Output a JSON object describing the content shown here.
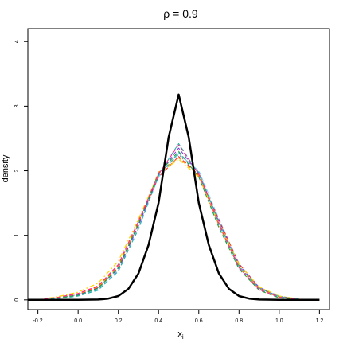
{
  "chart_data": {
    "type": "line",
    "title": "ρ = 0.9",
    "xlabel": "x",
    "xlabel_subscript": "i",
    "ylabel": "density",
    "xlim": [
      -0.25,
      1.25
    ],
    "ylim": [
      -0.15,
      4.2
    ],
    "xticks": [
      "-0.2",
      "0.0",
      "0.2",
      "0.4",
      "0.6",
      "0.8",
      "1.0",
      "1.2"
    ],
    "yticks": [
      "0",
      "1",
      "2",
      "3",
      "4"
    ],
    "grid": false,
    "legend": "none",
    "series": [
      {
        "color": "#000000",
        "dash": "solid",
        "width": 2.5,
        "x": [
          -0.25,
          -0.2,
          -0.1,
          0.0,
          0.1,
          0.15,
          0.2,
          0.25,
          0.3,
          0.35,
          0.4,
          0.45,
          0.5,
          0.55,
          0.6,
          0.65,
          0.7,
          0.75,
          0.8,
          0.85,
          0.9,
          1.0,
          1.1,
          1.2
        ],
        "y": [
          0.0,
          0.0,
          0.0,
          0.0,
          0.005,
          0.02,
          0.06,
          0.17,
          0.41,
          0.85,
          1.5,
          2.52,
          3.18,
          2.52,
          1.5,
          0.85,
          0.41,
          0.17,
          0.06,
          0.02,
          0.005,
          0.0,
          0.0,
          0.0
        ]
      },
      {
        "color": "#ff2a8c",
        "dash": "dashed",
        "width": 1,
        "x": [
          -0.2,
          -0.1,
          0.0,
          0.1,
          0.2,
          0.3,
          0.4,
          0.5,
          0.6,
          0.7,
          0.8,
          0.9,
          1.0,
          1.1,
          1.2
        ],
        "y": [
          0.0,
          0.04,
          0.1,
          0.22,
          0.55,
          1.22,
          1.95,
          2.4,
          1.95,
          1.18,
          0.5,
          0.16,
          0.04,
          0.01,
          0.0
        ]
      },
      {
        "color": "#2fb0b0",
        "dash": "dashed",
        "width": 1,
        "x": [
          -0.2,
          -0.1,
          0.0,
          0.1,
          0.2,
          0.3,
          0.4,
          0.5,
          0.6,
          0.7,
          0.8,
          0.9,
          1.0,
          1.1,
          1.2
        ],
        "y": [
          0.0,
          0.02,
          0.06,
          0.15,
          0.45,
          1.1,
          1.92,
          2.28,
          1.98,
          1.2,
          0.52,
          0.18,
          0.05,
          0.01,
          0.0
        ]
      },
      {
        "color": "#1f9e3a",
        "dash": "dashed",
        "width": 1,
        "x": [
          -0.2,
          -0.1,
          0.0,
          0.1,
          0.2,
          0.3,
          0.4,
          0.5,
          0.6,
          0.7,
          0.8,
          0.9,
          1.0,
          1.1,
          1.2
        ],
        "y": [
          0.0,
          0.03,
          0.07,
          0.18,
          0.5,
          1.18,
          1.96,
          2.3,
          1.9,
          1.12,
          0.48,
          0.15,
          0.03,
          0.01,
          0.0
        ]
      },
      {
        "color": "#ffd400",
        "dash": "dotdash",
        "width": 1.3,
        "x": [
          -0.2,
          -0.1,
          0.0,
          0.1,
          0.2,
          0.3,
          0.4,
          0.5,
          0.6,
          0.7,
          0.8,
          0.9,
          1.0,
          1.1,
          1.2
        ],
        "y": [
          0.0,
          0.05,
          0.12,
          0.26,
          0.6,
          1.25,
          1.95,
          2.18,
          1.9,
          1.2,
          0.55,
          0.2,
          0.06,
          0.01,
          0.0
        ]
      },
      {
        "color": "#ff8c00",
        "dash": "dashed",
        "width": 1,
        "x": [
          -0.2,
          -0.1,
          0.0,
          0.1,
          0.2,
          0.3,
          0.4,
          0.5,
          0.6,
          0.7,
          0.8,
          0.9,
          1.0,
          1.1,
          1.2
        ],
        "y": [
          0.0,
          0.04,
          0.09,
          0.2,
          0.52,
          1.2,
          1.98,
          2.2,
          1.92,
          1.16,
          0.5,
          0.17,
          0.04,
          0.01,
          0.0
        ]
      },
      {
        "color": "#8a2be2",
        "dash": "dashed",
        "width": 1,
        "x": [
          -0.2,
          -0.1,
          0.0,
          0.1,
          0.2,
          0.3,
          0.4,
          0.5,
          0.6,
          0.7,
          0.8,
          0.9,
          1.0,
          1.1,
          1.2
        ],
        "y": [
          0.0,
          0.03,
          0.08,
          0.19,
          0.48,
          1.15,
          1.94,
          2.35,
          1.96,
          1.22,
          0.54,
          0.19,
          0.05,
          0.01,
          0.0
        ]
      },
      {
        "color": "#ff2020",
        "dash": "dashed",
        "width": 1,
        "x": [
          -0.2,
          -0.1,
          0.0,
          0.1,
          0.2,
          0.3,
          0.4,
          0.5,
          0.6,
          0.7,
          0.8,
          0.9,
          1.0,
          1.1,
          1.2
        ],
        "y": [
          0.0,
          0.04,
          0.1,
          0.21,
          0.53,
          1.2,
          1.9,
          2.22,
          1.94,
          1.24,
          0.56,
          0.19,
          0.05,
          0.01,
          0.0
        ]
      },
      {
        "color": "#87ceeb",
        "dash": "dashed",
        "width": 1,
        "x": [
          -0.2,
          -0.1,
          0.0,
          0.1,
          0.2,
          0.3,
          0.4,
          0.5,
          0.6,
          0.7,
          0.8,
          0.9,
          1.0,
          1.1,
          1.2
        ],
        "y": [
          0.0,
          0.03,
          0.07,
          0.17,
          0.46,
          1.12,
          1.9,
          2.26,
          2.0,
          1.26,
          0.56,
          0.2,
          0.06,
          0.01,
          0.0
        ]
      },
      {
        "color": "#20b2aa",
        "dash": "dashed",
        "width": 1,
        "x": [
          -0.2,
          -0.1,
          0.0,
          0.1,
          0.2,
          0.3,
          0.4,
          0.5,
          0.6,
          0.7,
          0.8,
          0.9,
          1.0,
          1.1,
          1.2
        ],
        "y": [
          0.0,
          0.02,
          0.06,
          0.16,
          0.44,
          1.1,
          1.94,
          2.42,
          1.95,
          1.15,
          0.5,
          0.16,
          0.04,
          0.01,
          0.0
        ]
      },
      {
        "color": "#808080",
        "dash": "dotted",
        "width": 1,
        "x": [
          -0.2,
          -0.1,
          0.0,
          0.1,
          0.2,
          0.3,
          0.4,
          0.5,
          0.6,
          0.7,
          0.8,
          0.9,
          1.0,
          1.1,
          1.2
        ],
        "y": [
          0.0,
          0.03,
          0.08,
          0.19,
          0.5,
          1.17,
          1.95,
          2.25,
          1.93,
          1.19,
          0.52,
          0.18,
          0.05,
          0.01,
          0.0
        ]
      }
    ]
  }
}
